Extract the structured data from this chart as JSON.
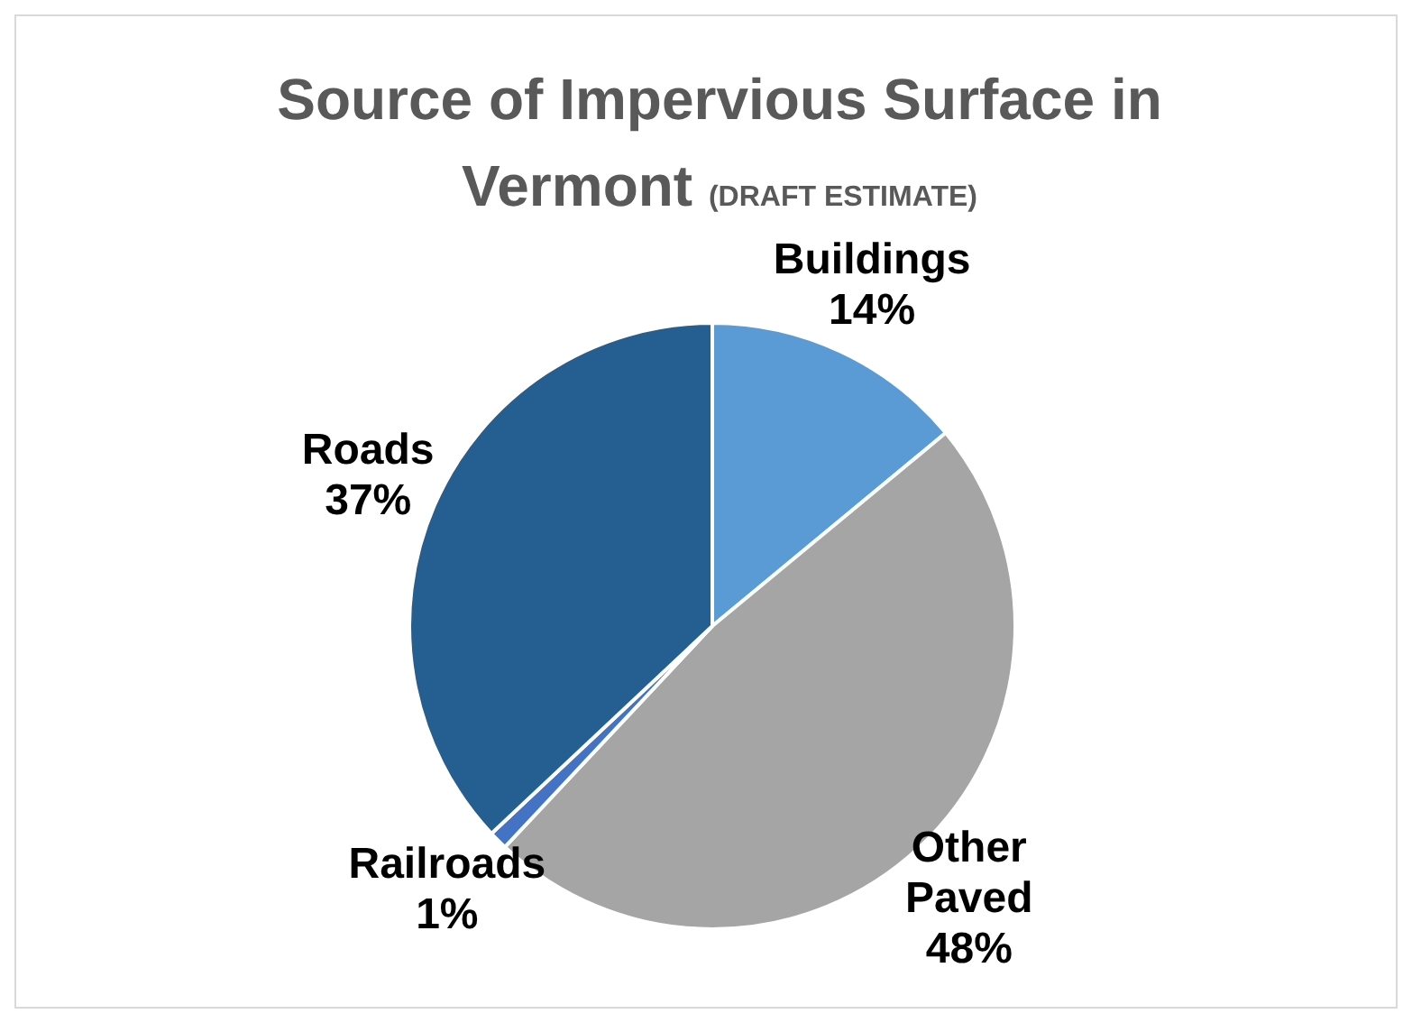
{
  "chart_data": {
    "type": "pie",
    "title": "Source of Impervious Surface in Vermont",
    "subtitle": "(DRAFT ESTIMATE)",
    "categories": [
      "Buildings",
      "Other Paved",
      "Railroads",
      "Roads"
    ],
    "values": [
      14,
      48,
      1,
      37
    ],
    "colors": [
      "#5b9bd5",
      "#a5a5a5",
      "#4472c4",
      "#255e91"
    ],
    "value_labels": [
      "14%",
      "48%",
      "1%",
      "37%"
    ],
    "legend": false
  }
}
